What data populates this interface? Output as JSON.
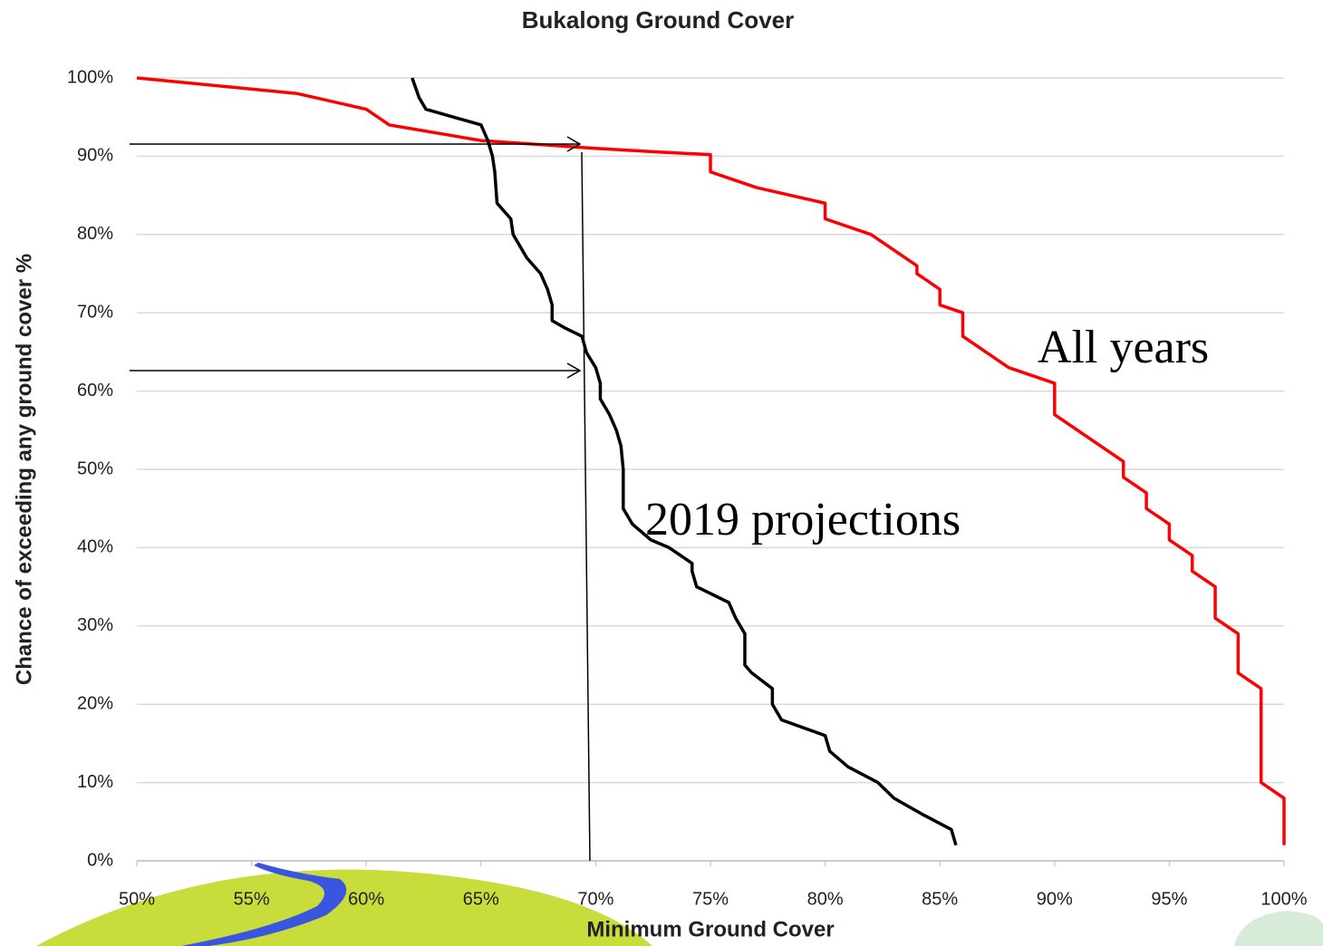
{
  "chart_data": {
    "type": "line",
    "title": "Bukalong Ground Cover",
    "xlabel": "Minimum Ground Cover",
    "ylabel": "Chance of exceeding any ground cover %",
    "xlim": [
      50,
      100
    ],
    "ylim": [
      0,
      100
    ],
    "xticks": [
      {
        "value": 50,
        "label": "50%"
      },
      {
        "value": 55,
        "label": "55%"
      },
      {
        "value": 60,
        "label": "60%"
      },
      {
        "value": 65,
        "label": "65%"
      },
      {
        "value": 70,
        "label": "70%"
      },
      {
        "value": 75,
        "label": "75%"
      },
      {
        "value": 80,
        "label": "80%"
      },
      {
        "value": 85,
        "label": "85%"
      },
      {
        "value": 90,
        "label": "90%"
      },
      {
        "value": 95,
        "label": "95%"
      },
      {
        "value": 100,
        "label": "100%"
      }
    ],
    "yticks": [
      {
        "value": 0,
        "label": "0%"
      },
      {
        "value": 10,
        "label": "10%"
      },
      {
        "value": 20,
        "label": "20%"
      },
      {
        "value": 30,
        "label": "30%"
      },
      {
        "value": 40,
        "label": "40%"
      },
      {
        "value": 50,
        "label": "50%"
      },
      {
        "value": 60,
        "label": "60%"
      },
      {
        "value": 70,
        "label": "70%"
      },
      {
        "value": 80,
        "label": "80%"
      },
      {
        "value": 90,
        "label": "90%"
      },
      {
        "value": 100,
        "label": "100%"
      }
    ],
    "grid": true,
    "series": [
      {
        "name": "All years",
        "color": "#ff0000",
        "x": [
          50,
          57,
          60,
          61,
          65,
          66,
          70,
          73,
          75,
          75,
          77,
          80,
          80,
          82,
          83,
          84,
          84,
          85,
          85,
          86,
          86,
          88,
          89,
          90,
          90,
          93,
          93,
          94,
          94,
          95,
          95,
          96,
          96,
          97,
          97,
          98,
          98,
          99,
          99,
          100,
          100
        ],
        "values": [
          100,
          98,
          96,
          94,
          92,
          91.8,
          91,
          90.5,
          90.2,
          88,
          86,
          84,
          82,
          80,
          78,
          76,
          75,
          73,
          71,
          70,
          67,
          63,
          62,
          61,
          57,
          51,
          49,
          47,
          45,
          43,
          41,
          39,
          37,
          35,
          31,
          29,
          24,
          22,
          10,
          8,
          2
        ]
      },
      {
        "name": "2019 projections",
        "color": "#000000",
        "x": [
          62,
          62.3,
          62.6,
          65.0,
          65.3,
          65.5,
          65.6,
          65.7,
          66.3,
          66.4,
          67,
          67.6,
          67.9,
          68.1,
          68.1,
          68.7,
          69.4,
          69.6,
          70,
          70.2,
          70.2,
          70.6,
          70.9,
          71.1,
          71.2,
          71.2,
          71.6,
          72.4,
          73.2,
          74.2,
          74.2,
          74.4,
          75.8,
          76.1,
          76.5,
          76.5,
          76.8,
          77.7,
          77.7,
          78.1,
          80,
          80.2,
          81,
          82.3,
          83,
          84.2,
          85.5,
          85.7
        ],
        "values": [
          100,
          97.5,
          96,
          94,
          92,
          90,
          88,
          84,
          82,
          80,
          77,
          75,
          73,
          71,
          69,
          68,
          67,
          64.9,
          63,
          61,
          59,
          57,
          55,
          53,
          50,
          45,
          43,
          41,
          40,
          38,
          37,
          35,
          33,
          31,
          29,
          25,
          24,
          22,
          20,
          18,
          16,
          14,
          12,
          10,
          8,
          6,
          4,
          2
        ]
      }
    ]
  }
}
